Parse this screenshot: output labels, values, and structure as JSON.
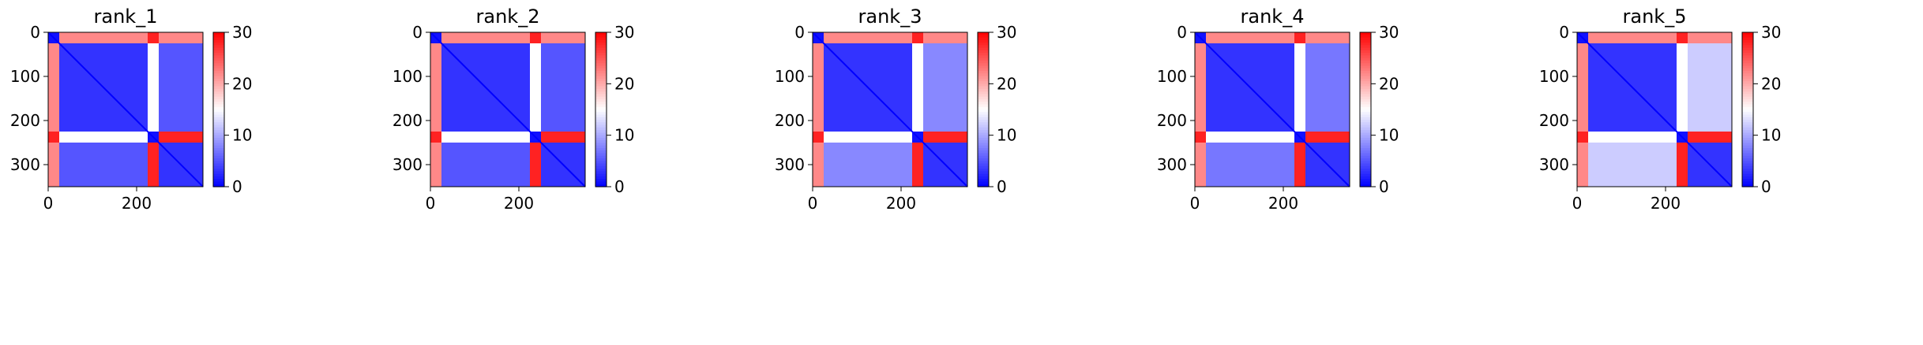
{
  "chart_data": [
    {
      "type": "heatmap",
      "title": "rank_1",
      "xlim": [
        0,
        350
      ],
      "ylim": [
        350,
        0
      ],
      "xticks": [
        0,
        200
      ],
      "yticks": [
        0,
        100,
        200,
        300
      ],
      "colorbar": {
        "vmin": 0,
        "vmax": 30,
        "ticks": [
          0,
          10,
          20,
          30
        ],
        "cmap": "bwr"
      },
      "blocks": {
        "n": 350,
        "boundaries": [
          25,
          225,
          250,
          350
        ],
        "values": [
          [
            1,
            22,
            28,
            22
          ],
          [
            22,
            3,
            15,
            5
          ],
          [
            28,
            15,
            1,
            28
          ],
          [
            22,
            5,
            28,
            3
          ]
        ]
      }
    },
    {
      "type": "heatmap",
      "title": "rank_2",
      "xlim": [
        0,
        350
      ],
      "ylim": [
        350,
        0
      ],
      "xticks": [
        0,
        200
      ],
      "yticks": [
        0,
        100,
        200,
        300
      ],
      "colorbar": {
        "vmin": 0,
        "vmax": 30,
        "ticks": [
          0,
          10,
          20,
          30
        ],
        "cmap": "bwr"
      },
      "blocks": {
        "n": 350,
        "boundaries": [
          25,
          225,
          250,
          350
        ],
        "values": [
          [
            1,
            22,
            28,
            22
          ],
          [
            22,
            3,
            15,
            5
          ],
          [
            28,
            15,
            1,
            28
          ],
          [
            22,
            5,
            28,
            3
          ]
        ]
      }
    },
    {
      "type": "heatmap",
      "title": "rank_3",
      "xlim": [
        0,
        350
      ],
      "ylim": [
        350,
        0
      ],
      "xticks": [
        0,
        200
      ],
      "yticks": [
        0,
        100,
        200,
        300
      ],
      "colorbar": {
        "vmin": 0,
        "vmax": 30,
        "ticks": [
          0,
          10,
          20,
          30
        ],
        "cmap": "bwr"
      },
      "blocks": {
        "n": 350,
        "boundaries": [
          25,
          225,
          250,
          350
        ],
        "values": [
          [
            1,
            22,
            28,
            22
          ],
          [
            22,
            3,
            15,
            8
          ],
          [
            28,
            15,
            1,
            28
          ],
          [
            22,
            8,
            28,
            3
          ]
        ]
      }
    },
    {
      "type": "heatmap",
      "title": "rank_4",
      "xlim": [
        0,
        350
      ],
      "ylim": [
        350,
        0
      ],
      "xticks": [
        0,
        200
      ],
      "yticks": [
        0,
        100,
        200,
        300
      ],
      "colorbar": {
        "vmin": 0,
        "vmax": 30,
        "ticks": [
          0,
          10,
          20,
          30
        ],
        "cmap": "bwr"
      },
      "blocks": {
        "n": 350,
        "boundaries": [
          25,
          225,
          250,
          350
        ],
        "values": [
          [
            1,
            22,
            28,
            22
          ],
          [
            22,
            3,
            15,
            7
          ],
          [
            28,
            15,
            1,
            28
          ],
          [
            22,
            7,
            28,
            3
          ]
        ]
      }
    },
    {
      "type": "heatmap",
      "title": "rank_5",
      "xlim": [
        0,
        350
      ],
      "ylim": [
        350,
        0
      ],
      "xticks": [
        0,
        200
      ],
      "yticks": [
        0,
        100,
        200,
        300
      ],
      "colorbar": {
        "vmin": 0,
        "vmax": 30,
        "ticks": [
          0,
          10,
          20,
          30
        ],
        "cmap": "bwr"
      },
      "blocks": {
        "n": 350,
        "boundaries": [
          25,
          225,
          250,
          350
        ],
        "values": [
          [
            1,
            22,
            28,
            22
          ],
          [
            22,
            3,
            15,
            12
          ],
          [
            28,
            15,
            1,
            28
          ],
          [
            22,
            12,
            28,
            3
          ]
        ]
      }
    }
  ]
}
